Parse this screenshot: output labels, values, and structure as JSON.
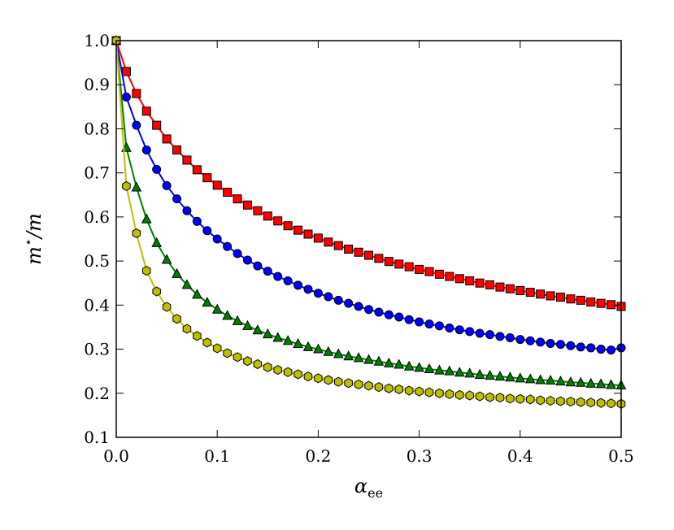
{
  "chart_data": {
    "type": "line",
    "title": "",
    "xlabel_main": "α",
    "xlabel_sub": "ee",
    "ylabel_main": "m",
    "ylabel_sup": "⋆",
    "ylabel_tail": "/m",
    "xlim": [
      0.0,
      0.5
    ],
    "ylim": [
      0.1,
      1.0
    ],
    "xticks": [
      "0.0",
      "0.1",
      "0.2",
      "0.3",
      "0.4",
      "0.5"
    ],
    "yticks": [
      "0.1",
      "0.2",
      "0.3",
      "0.4",
      "0.5",
      "0.6",
      "0.7",
      "0.8",
      "0.9",
      "1.0"
    ],
    "grid": false,
    "legend": false,
    "x": [
      0.0,
      0.01,
      0.02,
      0.03,
      0.04,
      0.05,
      0.06,
      0.07,
      0.08,
      0.09,
      0.1,
      0.11,
      0.12,
      0.13,
      0.14,
      0.15,
      0.16,
      0.17,
      0.18,
      0.19,
      0.2,
      0.21,
      0.22,
      0.23,
      0.24,
      0.25,
      0.26,
      0.27,
      0.28,
      0.29,
      0.3,
      0.31,
      0.32,
      0.33,
      0.34,
      0.35,
      0.36,
      0.37,
      0.38,
      0.39,
      0.4,
      0.41,
      0.42,
      0.43,
      0.44,
      0.45,
      0.46,
      0.47,
      0.48,
      0.49,
      0.5
    ],
    "series": [
      {
        "color": "#ff0000",
        "marker": "square",
        "values": [
          1.0,
          0.93,
          0.88,
          0.84,
          0.808,
          0.777,
          0.752,
          0.729,
          0.707,
          0.689,
          0.672,
          0.656,
          0.641,
          0.627,
          0.614,
          0.602,
          0.591,
          0.58,
          0.57,
          0.561,
          0.552,
          0.543,
          0.535,
          0.527,
          0.52,
          0.513,
          0.506,
          0.499,
          0.493,
          0.487,
          0.481,
          0.476,
          0.47,
          0.465,
          0.46,
          0.455,
          0.45,
          0.446,
          0.441,
          0.437,
          0.433,
          0.429,
          0.425,
          0.421,
          0.418,
          0.414,
          0.411,
          0.407,
          0.404,
          0.401,
          0.397
        ]
      },
      {
        "color": "#0000ff",
        "marker": "circle",
        "values": [
          1.0,
          0.872,
          0.808,
          0.752,
          0.708,
          0.671,
          0.641,
          0.614,
          0.59,
          0.569,
          0.55,
          0.533,
          0.517,
          0.502,
          0.489,
          0.477,
          0.465,
          0.455,
          0.445,
          0.436,
          0.427,
          0.419,
          0.411,
          0.404,
          0.397,
          0.39,
          0.384,
          0.378,
          0.373,
          0.367,
          0.362,
          0.357,
          0.353,
          0.348,
          0.344,
          0.34,
          0.336,
          0.333,
          0.329,
          0.326,
          0.322,
          0.319,
          0.316,
          0.313,
          0.311,
          0.308,
          0.305,
          0.303,
          0.3,
          0.298,
          0.303
        ]
      },
      {
        "color": "#008000",
        "marker": "triangle",
        "values": [
          1.0,
          0.757,
          0.667,
          0.595,
          0.541,
          0.503,
          0.471,
          0.446,
          0.424,
          0.406,
          0.39,
          0.376,
          0.364,
          0.353,
          0.343,
          0.334,
          0.326,
          0.319,
          0.312,
          0.305,
          0.3,
          0.294,
          0.289,
          0.284,
          0.28,
          0.276,
          0.272,
          0.268,
          0.265,
          0.261,
          0.258,
          0.255,
          0.252,
          0.25,
          0.247,
          0.245,
          0.242,
          0.24,
          0.238,
          0.236,
          0.234,
          0.232,
          0.23,
          0.229,
          0.227,
          0.225,
          0.224,
          0.222,
          0.221,
          0.219,
          0.218
        ]
      },
      {
        "color": "#bfbf00",
        "marker": "hexagon",
        "values": [
          1.0,
          0.67,
          0.563,
          0.478,
          0.431,
          0.396,
          0.369,
          0.346,
          0.33,
          0.315,
          0.302,
          0.291,
          0.282,
          0.273,
          0.266,
          0.259,
          0.253,
          0.248,
          0.243,
          0.238,
          0.234,
          0.23,
          0.226,
          0.223,
          0.22,
          0.217,
          0.214,
          0.211,
          0.209,
          0.206,
          0.204,
          0.202,
          0.2,
          0.198,
          0.196,
          0.195,
          0.193,
          0.191,
          0.19,
          0.188,
          0.187,
          0.186,
          0.184,
          0.183,
          0.182,
          0.181,
          0.18,
          0.179,
          0.178,
          0.177,
          0.176
        ]
      }
    ]
  }
}
